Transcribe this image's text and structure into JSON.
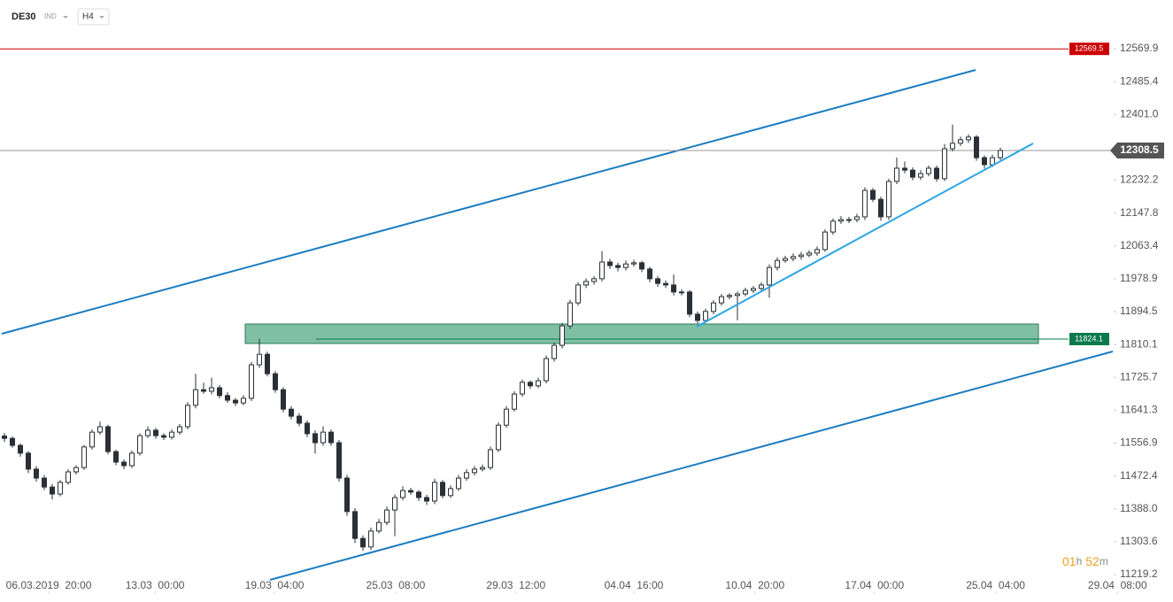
{
  "header": {
    "symbol": "DE30",
    "group": "IND",
    "interval": "H4"
  },
  "chart_data": {
    "type": "candlestick",
    "ylim": [
      11148.7,
      12695
    ],
    "xlim": [
      -0.556,
      146.67
    ],
    "yticks": [
      12569.9,
      12485.4,
      {
        "value": 12401,
        "label": "12401.0"
      },
      12232.2,
      12147.8,
      12063.4,
      11978.9,
      11894.5,
      11810.1,
      11725.7,
      11641.3,
      11556.9,
      11472.4,
      {
        "value": 11388,
        "label": "11388.0"
      },
      11303.6,
      11219.2
    ],
    "xticks": [
      {
        "value": 5.56,
        "label": "06.03.2019  20:00"
      },
      {
        "value": 18.9,
        "label": "13.03  00:00"
      },
      {
        "value": 33.9,
        "label": "19.03  04:00"
      },
      {
        "value": 49.1,
        "label": "25.03  08:00"
      },
      {
        "value": 64.2,
        "label": "29.03  12:00"
      },
      {
        "value": 79,
        "label": "04.04  16:00"
      },
      {
        "value": 94.2,
        "label": "10.04  20:00"
      },
      {
        "value": 109.2,
        "label": "17.04  00:00"
      },
      {
        "value": 124.4,
        "label": "25.04  04:00"
      },
      {
        "value": 139.7,
        "label": "29.04  08:00"
      }
    ],
    "up_color": "#ffffff",
    "down_color": "#2b2f36",
    "wick_color": "#2b2f36",
    "levels": [
      {
        "value": 12569.5,
        "color": "#cc0000"
      },
      {
        "value": 12308.5,
        "color": "#555555"
      },
      {
        "value": 11824.1,
        "color": "#0a7a4a"
      }
    ],
    "countdown": {
      "hours": "01",
      "hours_unit": "h",
      "minutes": "52",
      "minutes_unit": "m"
    },
    "ohlc": [
      [
        11575,
        11583,
        11560,
        11569
      ],
      [
        11569,
        11574,
        11545,
        11551
      ],
      [
        11551,
        11556,
        11522,
        11531
      ],
      [
        11531,
        11536,
        11480,
        11490
      ],
      [
        11490,
        11498,
        11458,
        11467
      ],
      [
        11467,
        11475,
        11436,
        11444
      ],
      [
        11444,
        11452,
        11412,
        11426
      ],
      [
        11426,
        11462,
        11420,
        11456
      ],
      [
        11456,
        11490,
        11450,
        11483
      ],
      [
        11483,
        11500,
        11476,
        11494
      ],
      [
        11494,
        11552,
        11488,
        11547
      ],
      [
        11547,
        11592,
        11540,
        11585
      ],
      [
        11585,
        11612,
        11578,
        11599
      ],
      [
        11599,
        11604,
        11528,
        11535
      ],
      [
        11535,
        11540,
        11500,
        11508
      ],
      [
        11508,
        11515,
        11490,
        11499
      ],
      [
        11499,
        11538,
        11493,
        11531
      ],
      [
        11531,
        11582,
        11525,
        11576
      ],
      [
        11576,
        11600,
        11570,
        11590
      ],
      [
        11590,
        11596,
        11568,
        11576
      ],
      [
        11576,
        11582,
        11565,
        11572
      ],
      [
        11572,
        11592,
        11566,
        11585
      ],
      [
        11585,
        11606,
        11578,
        11599
      ],
      [
        11599,
        11662,
        11592,
        11654
      ],
      [
        11654,
        11735,
        11646,
        11694
      ],
      [
        11694,
        11712,
        11684,
        11690
      ],
      [
        11690,
        11725,
        11682,
        11699
      ],
      [
        11699,
        11706,
        11672,
        11679
      ],
      [
        11679,
        11688,
        11660,
        11667
      ],
      [
        11667,
        11673,
        11652,
        11660
      ],
      [
        11660,
        11680,
        11654,
        11672
      ],
      [
        11672,
        11765,
        11665,
        11758
      ],
      [
        11758,
        11825,
        11750,
        11785
      ],
      [
        11785,
        11792,
        11728,
        11735
      ],
      [
        11735,
        11742,
        11686,
        11694
      ],
      [
        11694,
        11700,
        11636,
        11644
      ],
      [
        11644,
        11652,
        11618,
        11626
      ],
      [
        11626,
        11634,
        11600,
        11608
      ],
      [
        11608,
        11615,
        11572,
        11581
      ],
      [
        11581,
        11590,
        11530,
        11558
      ],
      [
        11558,
        11600,
        11550,
        11585
      ],
      [
        11585,
        11592,
        11550,
        11558
      ],
      [
        11558,
        11565,
        11458,
        11467
      ],
      [
        11467,
        11475,
        11370,
        11381
      ],
      [
        11381,
        11390,
        11300,
        11312
      ],
      [
        11312,
        11320,
        11280,
        11290
      ],
      [
        11290,
        11340,
        11282,
        11331
      ],
      [
        11331,
        11362,
        11325,
        11353
      ],
      [
        11353,
        11394,
        11346,
        11385
      ],
      [
        11385,
        11425,
        11318,
        11417
      ],
      [
        11417,
        11446,
        11410,
        11435
      ],
      [
        11435,
        11442,
        11424,
        11431
      ],
      [
        11431,
        11436,
        11408,
        11417
      ],
      [
        11417,
        11424,
        11398,
        11408
      ],
      [
        11408,
        11465,
        11400,
        11456
      ],
      [
        11456,
        11462,
        11415,
        11422
      ],
      [
        11422,
        11448,
        11416,
        11440
      ],
      [
        11440,
        11475,
        11434,
        11467
      ],
      [
        11467,
        11490,
        11460,
        11481
      ],
      [
        11481,
        11498,
        11474,
        11490
      ],
      [
        11490,
        11502,
        11484,
        11494
      ],
      [
        11494,
        11548,
        11488,
        11540
      ],
      [
        11540,
        11610,
        11534,
        11603
      ],
      [
        11603,
        11652,
        11596,
        11644
      ],
      [
        11644,
        11690,
        11638,
        11683
      ],
      [
        11683,
        11720,
        11676,
        11713
      ],
      [
        11713,
        11718,
        11696,
        11704
      ],
      [
        11704,
        11725,
        11698,
        11717
      ],
      [
        11717,
        11782,
        11710,
        11774
      ],
      [
        11774,
        11815,
        11766,
        11808
      ],
      [
        11808,
        11866,
        11800,
        11858
      ],
      [
        11858,
        11925,
        11850,
        11917
      ],
      [
        11917,
        11970,
        11910,
        11963
      ],
      [
        11963,
        11980,
        11955,
        11972
      ],
      [
        11972,
        11986,
        11964,
        11979
      ],
      [
        11979,
        12050,
        11972,
        12022
      ],
      [
        12022,
        12030,
        12004,
        12013
      ],
      [
        12013,
        12020,
        11998,
        12008
      ],
      [
        12008,
        12026,
        12000,
        12017
      ],
      [
        12017,
        12028,
        12010,
        12020
      ],
      [
        12020,
        12025,
        11996,
        12004
      ],
      [
        12004,
        12010,
        11970,
        11979
      ],
      [
        11979,
        11986,
        11958,
        11967
      ],
      [
        11967,
        11975,
        11955,
        11963
      ],
      [
        11963,
        11990,
        11936,
        11945
      ],
      [
        11945,
        11952,
        11936,
        11945
      ],
      [
        11945,
        11950,
        11880,
        11888
      ],
      [
        11888,
        11895,
        11864,
        11872
      ],
      [
        11872,
        11902,
        11866,
        11895
      ],
      [
        11895,
        11924,
        11888,
        11917
      ],
      [
        11917,
        11940,
        11910,
        11933
      ],
      [
        11933,
        11942,
        11926,
        11936
      ],
      [
        11936,
        11946,
        11872,
        11940
      ],
      [
        11940,
        11956,
        11934,
        11949
      ],
      [
        11949,
        11960,
        11942,
        11954
      ],
      [
        11954,
        11970,
        11948,
        11963
      ],
      [
        11963,
        12016,
        11930,
        12008
      ],
      [
        12008,
        12034,
        12000,
        12026
      ],
      [
        12026,
        12038,
        12020,
        12031
      ],
      [
        12031,
        12044,
        12024,
        12036
      ],
      [
        12036,
        12048,
        12028,
        12040
      ],
      [
        12040,
        12052,
        12034,
        12045
      ],
      [
        12045,
        12062,
        12038,
        12054
      ],
      [
        12054,
        12106,
        12048,
        12099
      ],
      [
        12099,
        12134,
        12092,
        12127
      ],
      [
        12127,
        12140,
        12120,
        12131
      ],
      [
        12131,
        12138,
        12122,
        12131
      ],
      [
        12131,
        12146,
        12124,
        12138
      ],
      [
        12138,
        12214,
        12130,
        12206
      ],
      [
        12206,
        12212,
        12176,
        12183
      ],
      [
        12183,
        12190,
        12128,
        12138
      ],
      [
        12138,
        12236,
        12130,
        12229
      ],
      [
        12229,
        12290,
        12222,
        12263
      ],
      [
        12263,
        12280,
        12250,
        12258
      ],
      [
        12258,
        12265,
        12232,
        12240
      ],
      [
        12240,
        12258,
        12233,
        12249
      ],
      [
        12249,
        12270,
        12242,
        12263
      ],
      [
        12263,
        12270,
        12228,
        12236
      ],
      [
        12236,
        12325,
        12230,
        12313
      ],
      [
        12313,
        12375,
        12306,
        12327
      ],
      [
        12327,
        12344,
        12320,
        12336
      ],
      [
        12336,
        12350,
        12328,
        12343
      ],
      [
        12343,
        12348,
        12282,
        12290
      ],
      [
        12290,
        12296,
        12262,
        12272
      ],
      [
        12272,
        12298,
        12266,
        12290
      ],
      [
        12290,
        12316,
        12284,
        12308.5
      ]
    ]
  }
}
